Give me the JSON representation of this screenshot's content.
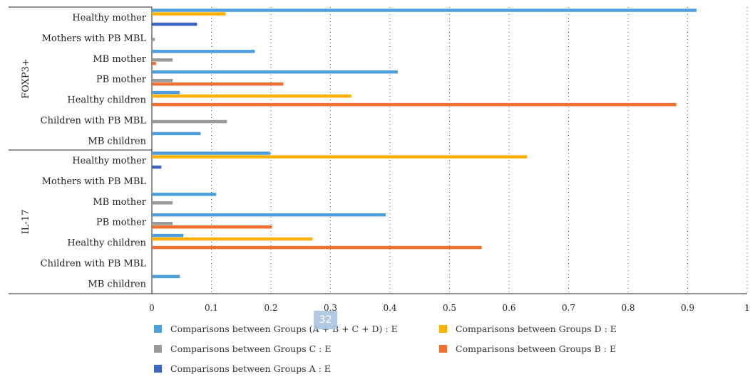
{
  "page_badge": "32",
  "chart_data": {
    "type": "bar",
    "orientation": "horizontal",
    "groups": [
      {
        "name": "FOXP3+",
        "categories": [
          "Healthy mother",
          "Mothers with PB MBL",
          "MB mother",
          "PB mother",
          "Healthy children",
          "Children with PB MBL",
          "MB children"
        ],
        "series": [
          {
            "name": "Comparisons between Groups (A + B + C + D) : E",
            "color": "#4f9fdc",
            "values": [
              0.915,
              0,
              0.173,
              0.413,
              0.047,
              0,
              0.082
            ]
          },
          {
            "name": "Comparisons between Groups D : E",
            "color": "#ffb000",
            "values": [
              0.124,
              0,
              0,
              0,
              0.335,
              0,
              0
            ]
          },
          {
            "name": "Comparisons between Groups C : E",
            "color": "#9a9a9a",
            "values": [
              0,
              0.005,
              0.035,
              0.035,
              0,
              0.126,
              0
            ]
          },
          {
            "name": "Comparisons between Groups B : E",
            "color": "#f07030",
            "values": [
              0,
              0,
              0.007,
              0.221,
              0.881,
              0,
              0
            ]
          },
          {
            "name": "Comparisons between Groups A : E",
            "color": "#3c66c4",
            "values": [
              0.076,
              0,
              0,
              0,
              0,
              0,
              0
            ]
          }
        ]
      },
      {
        "name": "IL-17",
        "categories": [
          "Healthy mother",
          "Mothers with PB MBL",
          "MB mother",
          "PB mother",
          "Healthy children",
          "Children with PB MBL",
          "MB children"
        ],
        "series": [
          {
            "name": "Comparisons between Groups (A + B + C + D) : E",
            "color": "#4f9fdc",
            "values": [
              0.199,
              0,
              0.108,
              0.393,
              0.053,
              0,
              0.047
            ]
          },
          {
            "name": "Comparisons between Groups D : E",
            "color": "#ffb000",
            "values": [
              0.63,
              0,
              0,
              0,
              0.27,
              0,
              0
            ]
          },
          {
            "name": "Comparisons between Groups C : E",
            "color": "#9a9a9a",
            "values": [
              0,
              0,
              0.035,
              0.035,
              0,
              0,
              0
            ]
          },
          {
            "name": "Comparisons between Groups B : E",
            "color": "#f07030",
            "values": [
              0,
              0,
              0,
              0.202,
              0.554,
              0,
              0
            ]
          },
          {
            "name": "Comparisons between Groups A : E",
            "color": "#3c66c4",
            "values": [
              0.016,
              0,
              0,
              0,
              0,
              0,
              0
            ]
          }
        ]
      }
    ],
    "xlim": [
      0,
      1
    ],
    "xticks": [
      "0",
      "0.1",
      "0.2",
      "0.3",
      "0.4",
      "0.5",
      "0.6",
      "0.7",
      "0.8",
      "0.9",
      "1"
    ],
    "grid": "vertical dotted",
    "legend": {
      "placement": "bottom",
      "entries": [
        {
          "label": "Comparisons between Groups (A + B + C + D) : E",
          "color": "#4f9fdc"
        },
        {
          "label": "Comparisons between Groups D : E",
          "color": "#ffb000"
        },
        {
          "label": "Comparisons between Groups C : E",
          "color": "#9a9a9a"
        },
        {
          "label": "Comparisons between Groups B : E",
          "color": "#f07030"
        },
        {
          "label": "Comparisons between Groups A : E",
          "color": "#3c66c4"
        }
      ]
    },
    "title": "",
    "xlabel": "",
    "ylabel": ""
  }
}
